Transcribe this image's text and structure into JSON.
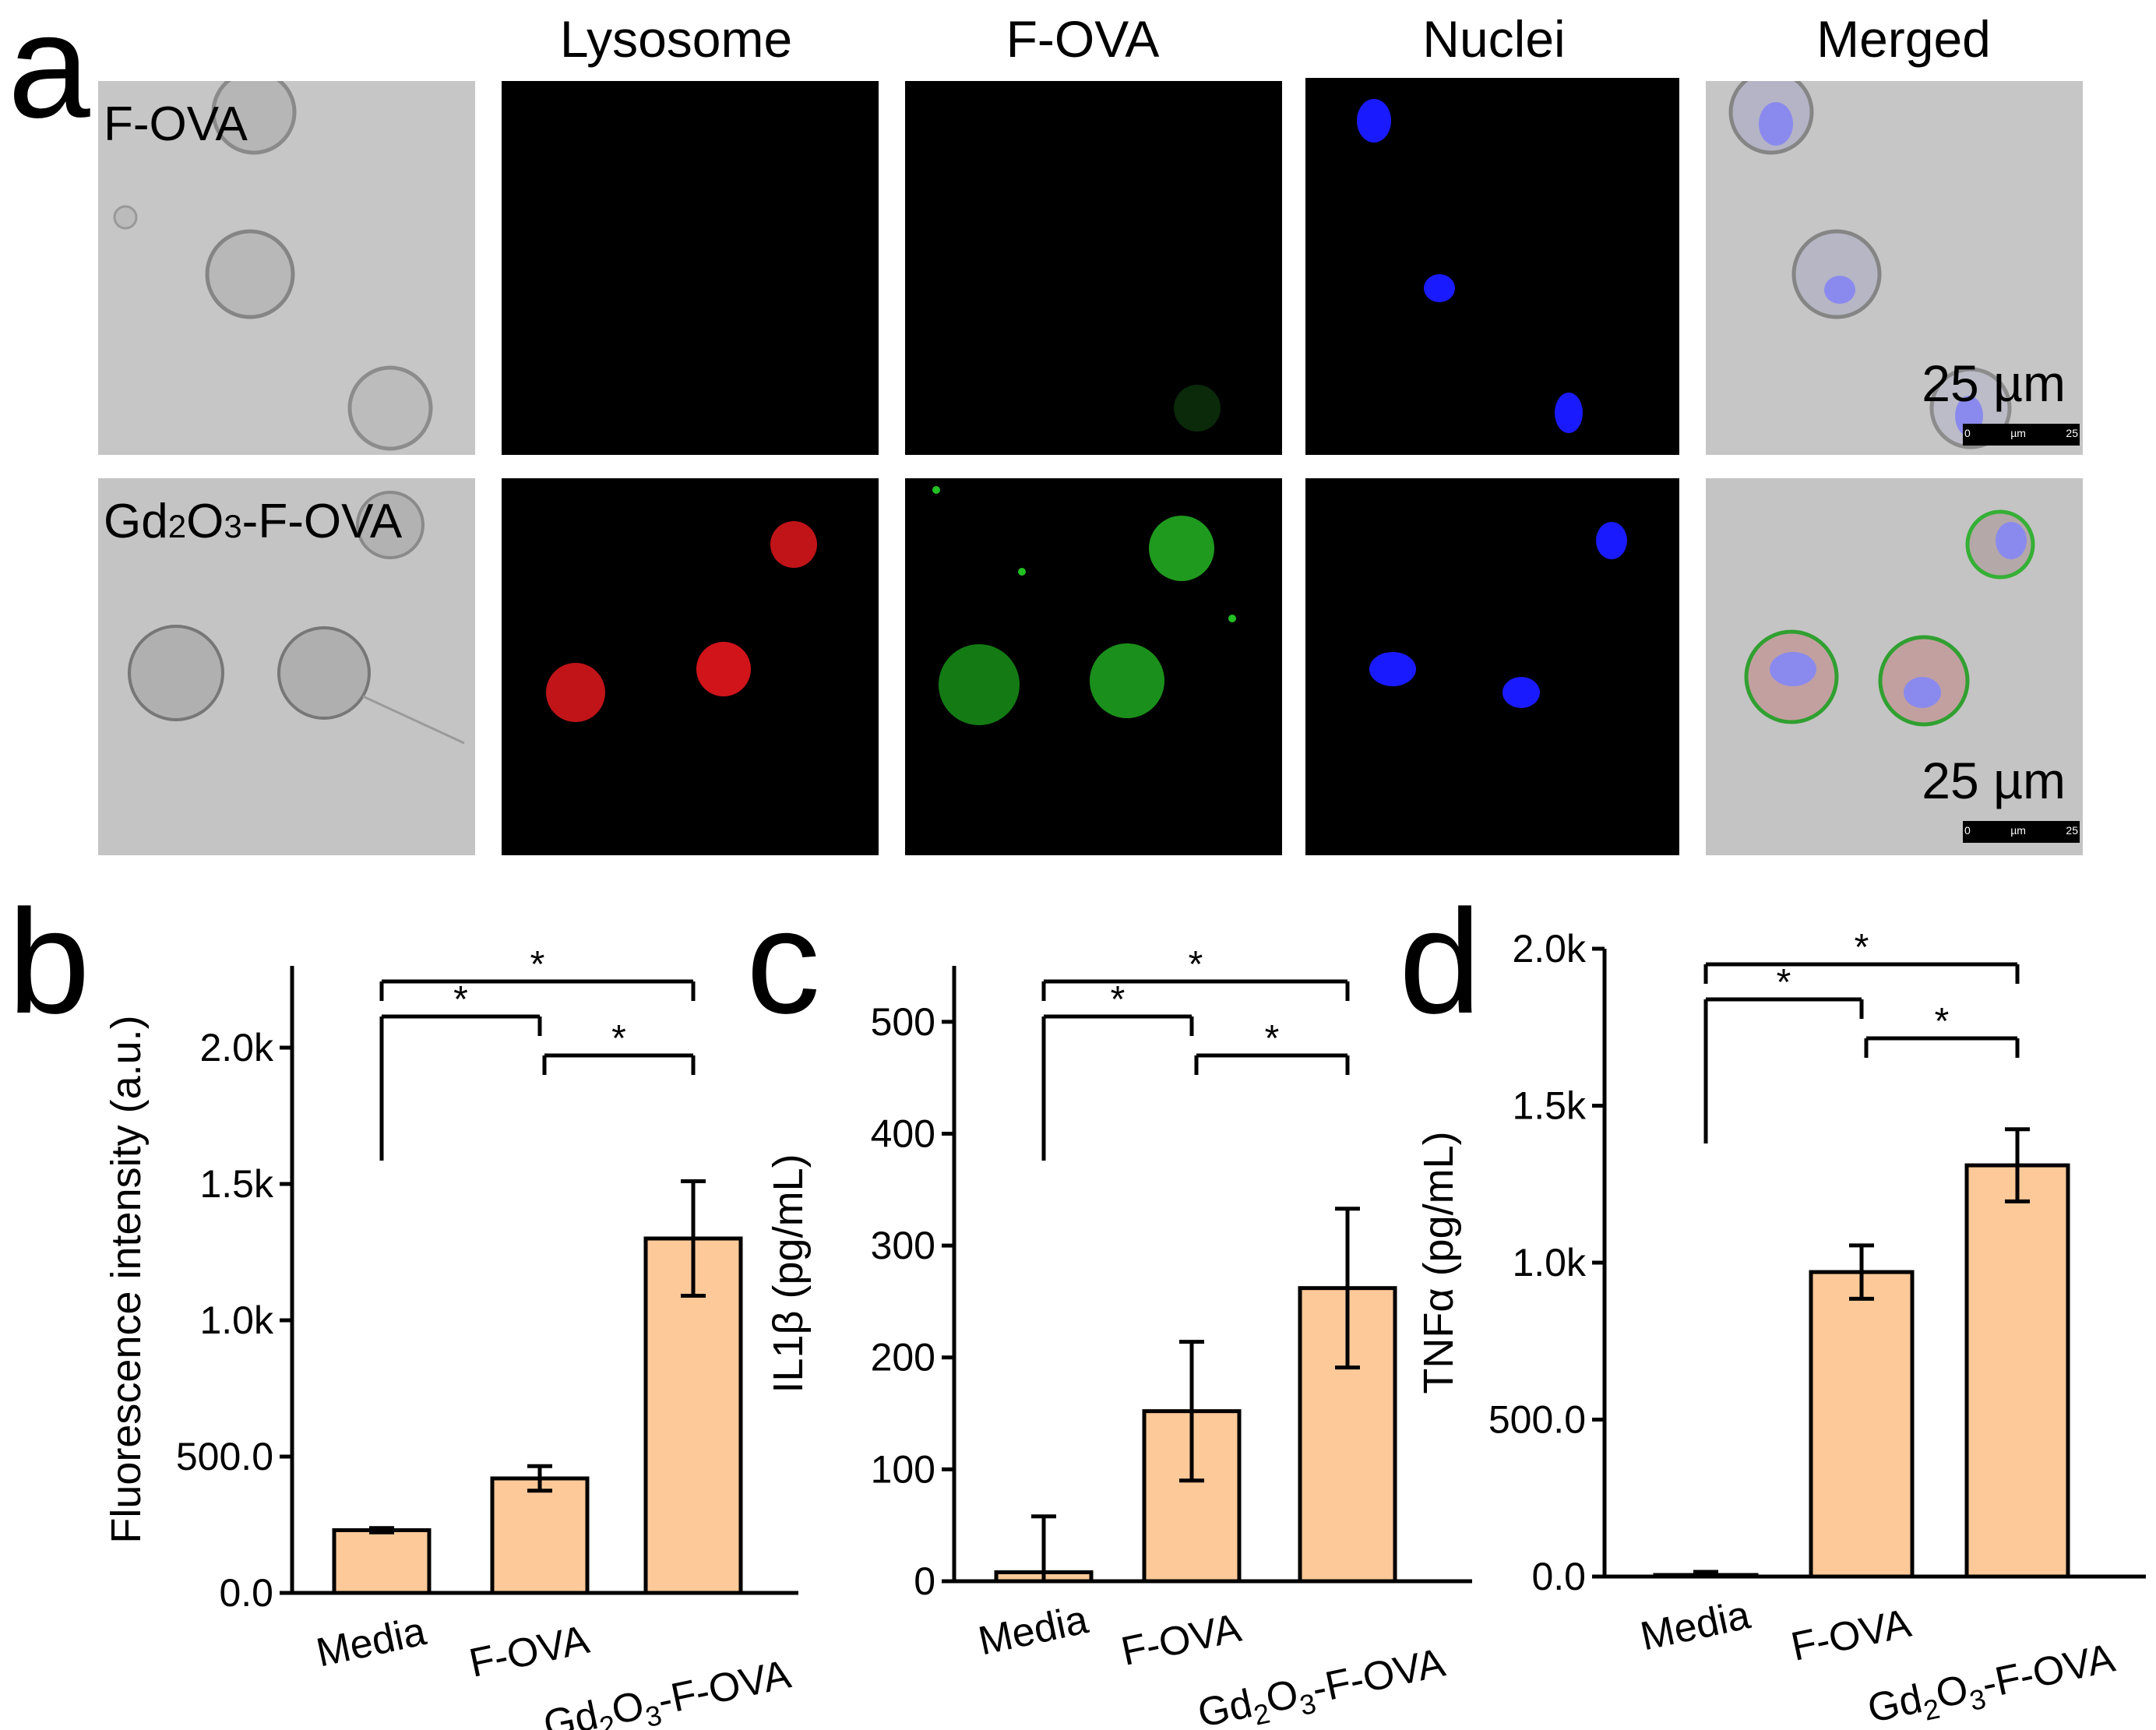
{
  "panel_a": {
    "letter": "a",
    "columns": [
      "Lysosome",
      "F-OVA",
      "Nuclei",
      "Merged"
    ],
    "rows": [
      {
        "label": "F-OVA",
        "scale_bar": "25 µm"
      },
      {
        "label": "Gd2O3-F-OVA",
        "label_sub": "2",
        "label_sub2": "3",
        "label_prefix": "Gd",
        "label_mid": "O",
        "label_suffix": "-F-OVA",
        "scale_bar": "25 µm"
      }
    ],
    "scale_ticks": [
      "0",
      "µm",
      "25"
    ],
    "colors": {
      "lysosome": "#e0141a",
      "f_ova": "#22c022",
      "nuclei": "#1a1aff",
      "brightfield": "#c8c8c8"
    }
  },
  "chart_data": [
    {
      "panel": "b",
      "type": "bar",
      "categories": [
        "Media",
        "F-OVA",
        "Gd2O3-F-OVA"
      ],
      "values": [
        230,
        420,
        1300
      ],
      "errors": [
        8,
        45,
        210
      ],
      "ylabel": "Fluorescence intensity (a.u.)",
      "ylim": [
        0,
        2300
      ],
      "yticks": [
        0,
        500,
        1000,
        1500,
        2000
      ],
      "ytick_labels": [
        "0.0",
        "500.0",
        "1.0k",
        "1.5k",
        "2.0k"
      ],
      "significance": [
        {
          "from": 0,
          "to": 1,
          "label": "*"
        },
        {
          "from": 1,
          "to": 2,
          "label": "*"
        },
        {
          "from": 0,
          "to": 2,
          "label": "*"
        }
      ],
      "bar_color": "#fdc999"
    },
    {
      "panel": "c",
      "type": "bar",
      "categories": [
        "Media",
        "F-OVA",
        "Gd2O3-F-OVA"
      ],
      "values": [
        8,
        152,
        262
      ],
      "errors": [
        50,
        62,
        71
      ],
      "ylabel": "IL1β (pg/mL)",
      "ylim": [
        0,
        550
      ],
      "yticks": [
        0,
        100,
        200,
        300,
        400,
        500
      ],
      "ytick_labels": [
        "0",
        "100",
        "200",
        "300",
        "400",
        "500"
      ],
      "significance": [
        {
          "from": 0,
          "to": 1,
          "label": "*"
        },
        {
          "from": 1,
          "to": 2,
          "label": "*"
        },
        {
          "from": 0,
          "to": 2,
          "label": "*"
        }
      ],
      "bar_color": "#fdc999"
    },
    {
      "panel": "d",
      "type": "bar",
      "categories": [
        "Media",
        "F-OVA",
        "Gd2O3-F-OVA"
      ],
      "values": [
        5,
        970,
        1310
      ],
      "errors": [
        10,
        85,
        115
      ],
      "ylabel": "TNFα (pg/mL)",
      "ylim": [
        0,
        2000
      ],
      "yticks": [
        0,
        500,
        1000,
        1500,
        2000
      ],
      "ytick_labels": [
        "0.0",
        "500.0",
        "1.0k",
        "1.5k",
        "2.0k"
      ],
      "significance": [
        {
          "from": 0,
          "to": 1,
          "label": "*"
        },
        {
          "from": 1,
          "to": 2,
          "label": "*"
        },
        {
          "from": 0,
          "to": 2,
          "label": "*"
        }
      ],
      "bar_color": "#fdc999"
    }
  ]
}
